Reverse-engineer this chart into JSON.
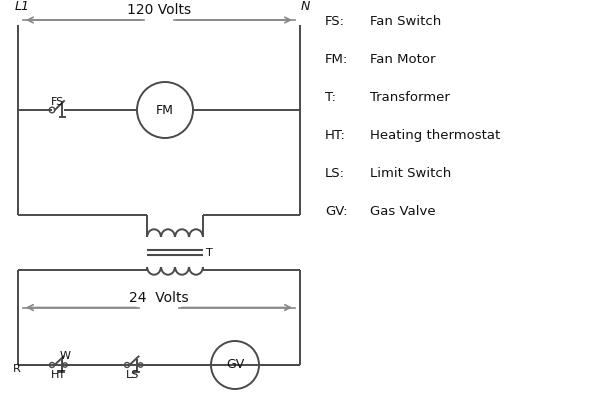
{
  "bg_color": "#ffffff",
  "line_color": "#4a4a4a",
  "arrow_color": "#888888",
  "text_color": "#111111",
  "legend": [
    [
      "FS:",
      "Fan Switch"
    ],
    [
      "FM:",
      "Fan Motor"
    ],
    [
      "T:",
      "Transformer"
    ],
    [
      "HT:",
      "Heating thermostat"
    ],
    [
      "LS:",
      "Limit Switch"
    ],
    [
      "GV:",
      "Gas Valve"
    ]
  ],
  "L1_label": "L1",
  "N_label": "N",
  "volts120_label": "120 Volts",
  "volts24_label": "24  Volts",
  "FS_label": "FS",
  "FM_label": "FM",
  "T_label": "T",
  "R_label": "R",
  "W_label": "W",
  "HT_label": "HT",
  "LS_label": "LS",
  "GV_label": "GV"
}
